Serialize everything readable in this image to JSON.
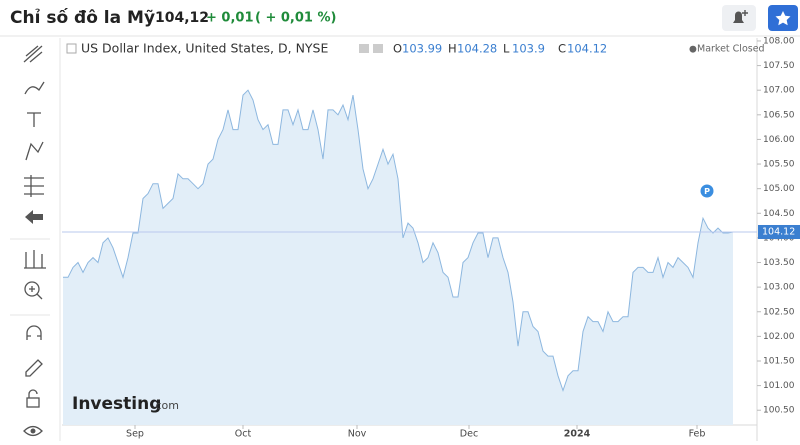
{
  "header": {
    "title": "Chỉ số đô la Mỹ",
    "price": "104,12",
    "change": "+ 0,01",
    "change_pct": "( + 0,01 %)"
  },
  "chart_data": {
    "type": "area",
    "title": "US Dollar Index, United States, D, NYSE",
    "ohlc": [
      {
        "label": "O",
        "value": 103.99
      },
      {
        "label": "H",
        "value": 104.28
      },
      {
        "label": "L",
        "value": 103.9
      },
      {
        "label": "C",
        "value": 104.12
      }
    ],
    "status": "Market Closed",
    "values": [
      103.2,
      103.2,
      103.4,
      103.5,
      103.3,
      103.5,
      103.6,
      103.5,
      103.9,
      104.0,
      103.8,
      103.5,
      103.2,
      103.6,
      104.1,
      104.1,
      104.8,
      104.9,
      105.1,
      105.1,
      104.6,
      104.7,
      104.8,
      105.3,
      105.2,
      105.2,
      105.1,
      105.0,
      105.1,
      105.5,
      105.6,
      106.0,
      106.2,
      106.6,
      106.2,
      106.2,
      106.9,
      107.0,
      106.8,
      106.4,
      106.2,
      106.3,
      105.9,
      105.9,
      106.6,
      106.6,
      106.3,
      106.6,
      106.2,
      106.2,
      106.6,
      106.2,
      105.6,
      106.6,
      106.6,
      106.5,
      106.7,
      106.4,
      106.9,
      106.2,
      105.4,
      105.0,
      105.2,
      105.5,
      105.8,
      105.5,
      105.7,
      105.2,
      104.0,
      104.3,
      104.2,
      103.9,
      103.5,
      103.6,
      103.9,
      103.7,
      103.3,
      103.2,
      102.8,
      102.8,
      103.5,
      103.6,
      103.9,
      104.1,
      104.1,
      103.6,
      104.0,
      104.0,
      103.6,
      103.3,
      102.7,
      101.8,
      102.5,
      102.5,
      102.2,
      102.1,
      101.7,
      101.6,
      101.6,
      101.2,
      100.9,
      101.2,
      101.3,
      101.3,
      102.1,
      102.4,
      102.3,
      102.3,
      102.1,
      102.5,
      102.3,
      102.3,
      102.4,
      102.4,
      103.3,
      103.4,
      103.4,
      103.3,
      103.3,
      103.6,
      103.2,
      103.5,
      103.4,
      103.6,
      103.5,
      103.4,
      103.2,
      103.9,
      104.4,
      104.2,
      104.1,
      104.2,
      104.1,
      104.1,
      104.12
    ],
    "color": "#8db7df",
    "fill_color": "#e2eef8",
    "last_price": 104.12,
    "last_price_color": "#3b7fd0",
    "marker": "P",
    "xlim": [
      0,
      138.8
    ],
    "xticks": [
      {
        "value": 14.4,
        "label": "Sep"
      },
      {
        "value": 36,
        "label": "Oct"
      },
      {
        "value": 58.8,
        "label": "Nov"
      },
      {
        "value": 81.2,
        "label": "Dec"
      },
      {
        "value": 102.8,
        "label": "2024"
      },
      {
        "value": 126.8,
        "label": "Feb"
      }
    ],
    "ylim": [
      100.2,
      108.05
    ],
    "yticks": [
      {
        "value": 100.5,
        "label": "100.50"
      },
      {
        "value": 101,
        "label": "101.00"
      },
      {
        "value": 101.5,
        "label": "101.50"
      },
      {
        "value": 102,
        "label": "102.00"
      },
      {
        "value": 102.5,
        "label": "102.50"
      },
      {
        "value": 103,
        "label": "103.00"
      },
      {
        "value": 103.5,
        "label": "103.50"
      },
      {
        "value": 104,
        "label": "104.00"
      },
      {
        "value": 104.5,
        "label": "104.50"
      },
      {
        "value": 105,
        "label": "105.00"
      },
      {
        "value": 105.5,
        "label": "105.50"
      },
      {
        "value": 106,
        "label": "106.00"
      },
      {
        "value": 106.5,
        "label": "106.50"
      },
      {
        "value": 107,
        "label": "107.00"
      },
      {
        "value": 107.5,
        "label": "107.50"
      },
      {
        "value": 108,
        "label": "108.00"
      }
    ],
    "watermark": "Investing",
    "watermark_suffix": ".com"
  }
}
